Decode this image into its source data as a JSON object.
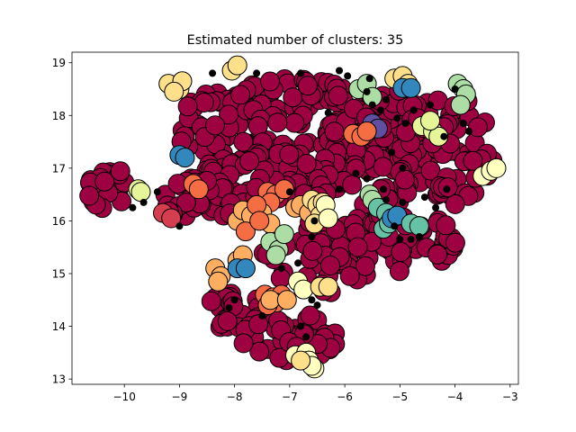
{
  "chart_data": {
    "type": "scatter",
    "title": "Estimated number of clusters: 35",
    "xlabel": "",
    "ylabel": "",
    "xlim": [
      -10.95,
      -2.85
    ],
    "ylim": [
      12.9,
      19.2
    ],
    "xticks": [
      -10,
      -9,
      -8,
      -7,
      -6,
      -5,
      -4,
      -3
    ],
    "xtick_labels": [
      "−10",
      "−9",
      "−8",
      "−7",
      "−6",
      "−5",
      "−4",
      "−3"
    ],
    "yticks": [
      13,
      14,
      15,
      16,
      17,
      18,
      19
    ],
    "ytick_labels": [
      "13",
      "14",
      "15",
      "16",
      "17",
      "18",
      "19"
    ],
    "grid": false,
    "legend": "none",
    "colormap": "Spectral",
    "noise_color": "#000000",
    "main_cluster_color": "#9e0142",
    "cluster_colors": [
      "#9e0142",
      "#d53e4f",
      "#f46d43",
      "#fdae61",
      "#fee08b",
      "#ffffbf",
      "#e6f598",
      "#abdda4",
      "#66c2a5",
      "#3288bd",
      "#5e4fa2"
    ],
    "main_cluster_regions": [
      {
        "cx": -6.9,
        "cy": 17.8,
        "rx": 2.2,
        "ry": 0.9,
        "n": 170
      },
      {
        "cx": -5.0,
        "cy": 17.3,
        "rx": 1.3,
        "ry": 1.2,
        "n": 110
      },
      {
        "cx": -3.9,
        "cy": 17.3,
        "rx": 0.6,
        "ry": 1.0,
        "n": 35
      },
      {
        "cx": -7.2,
        "cy": 16.8,
        "rx": 1.6,
        "ry": 0.5,
        "n": 70
      },
      {
        "cx": -5.3,
        "cy": 15.6,
        "rx": 1.4,
        "ry": 0.6,
        "n": 60
      },
      {
        "cx": -6.5,
        "cy": 15.3,
        "rx": 1.0,
        "ry": 0.7,
        "n": 40
      },
      {
        "cx": -8.6,
        "cy": 16.4,
        "rx": 0.7,
        "ry": 0.4,
        "n": 30
      },
      {
        "cx": -8.0,
        "cy": 14.3,
        "rx": 0.5,
        "ry": 0.4,
        "n": 22
      },
      {
        "cx": -7.0,
        "cy": 13.8,
        "rx": 0.9,
        "ry": 0.45,
        "n": 45
      },
      {
        "cx": -10.3,
        "cy": 16.6,
        "rx": 0.35,
        "ry": 0.45,
        "n": 28
      },
      {
        "cx": -9.2,
        "cy": 16.1,
        "rx": 0.15,
        "ry": 0.1,
        "n": 3
      }
    ],
    "clusters": [
      {
        "color": "#fee08b",
        "points": [
          [
            -9.2,
            18.6
          ],
          [
            -9.0,
            18.5
          ],
          [
            -8.95,
            18.65
          ],
          [
            -9.1,
            18.45
          ]
        ]
      },
      {
        "color": "#fee08b",
        "points": [
          [
            -8.05,
            18.85
          ],
          [
            -7.95,
            18.95
          ]
        ]
      },
      {
        "color": "#fee08b",
        "points": [
          [
            -5.1,
            18.7
          ],
          [
            -4.95,
            18.75
          ],
          [
            -4.85,
            18.6
          ]
        ]
      },
      {
        "color": "#3288bd",
        "points": [
          [
            -4.95,
            18.52
          ],
          [
            -4.8,
            18.52
          ]
        ]
      },
      {
        "color": "#abdda4",
        "points": [
          [
            -5.75,
            18.5
          ],
          [
            -5.6,
            18.6
          ],
          [
            -5.5,
            18.35
          ]
        ]
      },
      {
        "color": "#abdda4",
        "points": [
          [
            -3.95,
            18.6
          ],
          [
            -3.85,
            18.5
          ],
          [
            -3.8,
            18.4
          ],
          [
            -3.9,
            18.2
          ]
        ]
      },
      {
        "color": "#e6f598",
        "points": [
          [
            -4.6,
            17.8
          ],
          [
            -4.4,
            17.7
          ],
          [
            -4.3,
            17.6
          ],
          [
            -4.45,
            17.9
          ]
        ]
      },
      {
        "color": "#5e4fa2",
        "points": [
          [
            -5.5,
            17.85
          ],
          [
            -5.4,
            17.75
          ]
        ]
      },
      {
        "color": "#f46d43",
        "points": [
          [
            -5.85,
            17.65
          ],
          [
            -5.7,
            17.6
          ],
          [
            -5.6,
            17.7
          ]
        ]
      },
      {
        "color": "#3288bd",
        "points": [
          [
            -9.0,
            17.25
          ],
          [
            -8.9,
            17.2
          ]
        ]
      },
      {
        "color": "#ffffbf",
        "points": [
          [
            -3.5,
            16.85
          ],
          [
            -3.35,
            16.95
          ],
          [
            -3.25,
            17.0
          ]
        ]
      },
      {
        "color": "#e6f598",
        "points": [
          [
            -9.75,
            16.6
          ],
          [
            -9.7,
            16.55
          ]
        ]
      },
      {
        "color": "#d53e4f",
        "points": [
          [
            -9.3,
            16.15
          ],
          [
            -9.15,
            16.05
          ]
        ]
      },
      {
        "color": "#f46d43",
        "points": [
          [
            -8.75,
            16.7
          ],
          [
            -8.65,
            16.6
          ]
        ]
      },
      {
        "color": "#f46d43",
        "points": [
          [
            -7.4,
            16.55
          ],
          [
            -7.25,
            16.5
          ],
          [
            -7.1,
            16.6
          ],
          [
            -7.35,
            16.35
          ]
        ]
      },
      {
        "color": "#fdae61",
        "points": [
          [
            -7.95,
            16.0
          ],
          [
            -7.85,
            16.2
          ],
          [
            -7.7,
            16.1
          ],
          [
            -7.5,
            16.15
          ],
          [
            -7.35,
            15.95
          ]
        ]
      },
      {
        "color": "#f46d43",
        "points": [
          [
            -7.8,
            15.8
          ],
          [
            -7.6,
            16.3
          ],
          [
            -7.55,
            16.0
          ]
        ]
      },
      {
        "color": "#fdae61",
        "points": [
          [
            -6.9,
            16.25
          ],
          [
            -6.8,
            16.3
          ],
          [
            -6.65,
            16.15
          ]
        ]
      },
      {
        "color": "#fee08b",
        "points": [
          [
            -6.6,
            16.4
          ],
          [
            -6.5,
            16.3
          ],
          [
            -6.4,
            16.35
          ],
          [
            -6.45,
            16.1
          ],
          [
            -6.55,
            15.95
          ]
        ]
      },
      {
        "color": "#ffffbf",
        "points": [
          [
            -6.35,
            16.3
          ],
          [
            -6.3,
            16.05
          ]
        ]
      },
      {
        "color": "#abdda4",
        "points": [
          [
            -7.35,
            15.6
          ],
          [
            -7.2,
            15.45
          ],
          [
            -7.1,
            15.75
          ],
          [
            -7.25,
            15.35
          ]
        ]
      },
      {
        "color": "#abdda4",
        "points": [
          [
            -5.55,
            16.5
          ],
          [
            -5.5,
            16.4
          ]
        ]
      },
      {
        "color": "#66c2a5",
        "points": [
          [
            -5.4,
            16.25
          ],
          [
            -5.25,
            16.15
          ],
          [
            -5.3,
            15.85
          ],
          [
            -5.2,
            15.95
          ]
        ]
      },
      {
        "color": "#3288bd",
        "points": [
          [
            -5.15,
            16.05
          ],
          [
            -5.05,
            16.1
          ]
        ]
      },
      {
        "color": "#66c2a5",
        "points": [
          [
            -4.8,
            15.95
          ],
          [
            -4.65,
            15.9
          ]
        ]
      },
      {
        "color": "#fdae61",
        "points": [
          [
            -8.35,
            15.1
          ],
          [
            -8.25,
            14.95
          ],
          [
            -8.3,
            14.85
          ]
        ]
      },
      {
        "color": "#fdae61",
        "points": [
          [
            -7.95,
            15.25
          ],
          [
            -7.85,
            15.35
          ]
        ]
      },
      {
        "color": "#3288bd",
        "points": [
          [
            -7.95,
            15.1
          ],
          [
            -7.8,
            15.1
          ]
        ]
      },
      {
        "color": "#f46d43",
        "points": [
          [
            -7.45,
            14.6
          ],
          [
            -7.3,
            14.55
          ],
          [
            -7.15,
            14.6
          ],
          [
            -7.25,
            14.45
          ],
          [
            -7.4,
            14.4
          ]
        ]
      },
      {
        "color": "#fdae61",
        "points": [
          [
            -7.35,
            14.5
          ],
          [
            -7.05,
            14.5
          ]
        ]
      },
      {
        "color": "#ffffbf",
        "points": [
          [
            -6.85,
            14.85
          ],
          [
            -6.75,
            14.7
          ]
        ]
      },
      {
        "color": "#fee08b",
        "points": [
          [
            -6.45,
            14.75
          ],
          [
            -6.3,
            14.75
          ]
        ]
      },
      {
        "color": "#ffffbf",
        "points": [
          [
            -6.9,
            13.45
          ],
          [
            -6.7,
            13.5
          ],
          [
            -6.65,
            13.35
          ],
          [
            -6.55,
            13.2
          ],
          [
            -6.6,
            13.25
          ]
        ]
      },
      {
        "color": "#fee08b",
        "points": [
          [
            -6.8,
            13.35
          ]
        ]
      }
    ],
    "noise_points": [
      [
        -8.4,
        18.8
      ],
      [
        -7.6,
        18.8
      ],
      [
        -6.8,
        18.8
      ],
      [
        -6.1,
        18.85
      ],
      [
        -5.95,
        18.75
      ],
      [
        -5.55,
        18.7
      ],
      [
        -5.6,
        18.45
      ],
      [
        -5.5,
        18.2
      ],
      [
        -5.35,
        18.1
      ],
      [
        -5.25,
        18.3
      ],
      [
        -5.05,
        17.95
      ],
      [
        -4.9,
        17.85
      ],
      [
        -4.75,
        18.1
      ],
      [
        -4.45,
        18.2
      ],
      [
        -4.2,
        17.6
      ],
      [
        -3.75,
        17.7
      ],
      [
        -3.85,
        17.85
      ],
      [
        -4.0,
        18.5
      ],
      [
        -6.3,
        18.05
      ],
      [
        -5.15,
        17.3
      ],
      [
        -4.95,
        17.0
      ],
      [
        -5.3,
        16.6
      ],
      [
        -5.25,
        16.4
      ],
      [
        -4.95,
        16.35
      ],
      [
        -4.55,
        16.45
      ],
      [
        -4.35,
        16.25
      ],
      [
        -4.15,
        16.6
      ],
      [
        -5.0,
        15.65
      ],
      [
        -4.8,
        15.65
      ],
      [
        -4.65,
        15.7
      ],
      [
        -5.1,
        15.9
      ],
      [
        -9.85,
        16.25
      ],
      [
        -9.65,
        16.35
      ],
      [
        -9.4,
        16.55
      ],
      [
        -9.0,
        15.9
      ],
      [
        -7.0,
        16.55
      ],
      [
        -6.55,
        16.0
      ],
      [
        -6.6,
        15.7
      ],
      [
        -7.15,
        15.1
      ],
      [
        -6.85,
        15.2
      ],
      [
        -6.6,
        14.5
      ],
      [
        -6.5,
        14.4
      ],
      [
        -7.5,
        14.2
      ],
      [
        -8.1,
        14.35
      ],
      [
        -8.0,
        14.5
      ],
      [
        -6.8,
        14.0
      ],
      [
        -6.7,
        13.8
      ],
      [
        -5.8,
        16.9
      ],
      [
        -5.6,
        16.8
      ],
      [
        -6.1,
        16.6
      ]
    ]
  }
}
